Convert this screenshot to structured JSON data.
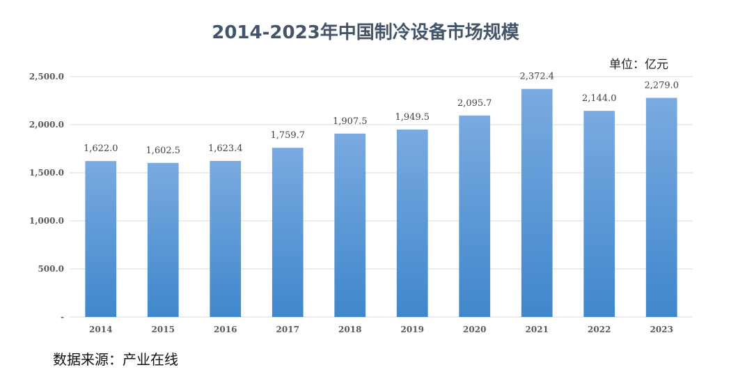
{
  "chart_data": {
    "type": "bar",
    "title": "2014-2023年中国制冷设备市场规模",
    "unit": "单位：亿元",
    "source": "数据来源：产业在线",
    "categories": [
      "2014",
      "2015",
      "2016",
      "2017",
      "2018",
      "2019",
      "2020",
      "2021",
      "2022",
      "2023"
    ],
    "values": [
      1622.0,
      1602.5,
      1623.4,
      1759.7,
      1907.5,
      1949.5,
      2095.7,
      2372.4,
      2144.0,
      2279.0
    ],
    "data_labels": [
      "1,622.0",
      "1,602.5",
      "1,623.4",
      "1,759.7",
      "1,907.5",
      "1,949.5",
      "2,095.7",
      "2,372.4",
      "2,144.0",
      "2,279.0"
    ],
    "ylim": [
      0,
      2500
    ],
    "yticks": [
      0,
      500,
      1000,
      1500,
      2000,
      2500
    ],
    "ytick_labels": [
      "-",
      "500.0",
      "1,000.0",
      "1,500.0",
      "2,000.0",
      "2,500.0"
    ],
    "grid": true,
    "legend": "none",
    "colors": {
      "bar_top": "#7aaae0",
      "bar_bottom": "#3f87cc",
      "grid": "#d9d9d9",
      "title": "#44546a"
    }
  }
}
